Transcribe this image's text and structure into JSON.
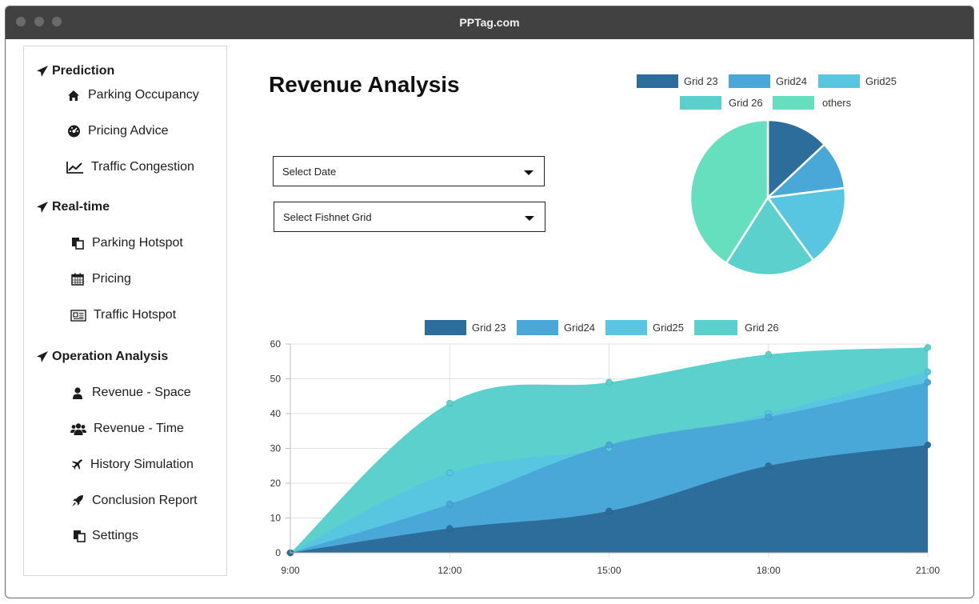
{
  "window": {
    "title": "PPTag.com"
  },
  "sidebar": {
    "sections": [
      {
        "label": "Prediction",
        "items": [
          {
            "label": "Parking Occupancy",
            "icon": "home-icon"
          },
          {
            "label": "Pricing Advice",
            "icon": "dashboard-icon"
          },
          {
            "label": "Traffic Congestion",
            "icon": "line-chart-icon"
          }
        ]
      },
      {
        "label": "Real-time",
        "items": [
          {
            "label": "Parking Hotspot",
            "icon": "copy-icon"
          },
          {
            "label": "Pricing",
            "icon": "calendar-icon"
          },
          {
            "label": "Traffic Hotspot",
            "icon": "newspaper-icon"
          }
        ]
      },
      {
        "label": "Operation Analysis",
        "items": [
          {
            "label": "Revenue - Space",
            "icon": "user-icon"
          },
          {
            "label": "Revenue - Time",
            "icon": "users-icon"
          },
          {
            "label": "History Simulation",
            "icon": "plane-icon"
          },
          {
            "label": "Conclusion Report",
            "icon": "rocket-icon"
          },
          {
            "label": "Settings",
            "icon": "copy-icon"
          }
        ]
      }
    ]
  },
  "main": {
    "title": "Revenue Analysis",
    "select_date": "Select Date",
    "select_grid": "Select Fishnet Grid"
  },
  "colors": {
    "grid23": "#2d6d9b",
    "grid24": "#4aa8d8",
    "grid25": "#58c6e0",
    "grid26": "#5cd0cc",
    "others": "#66dfbf"
  },
  "chart_data": [
    {
      "type": "pie",
      "title": "",
      "categories": [
        "Grid 23",
        "Grid24",
        "Grid25",
        "Grid 26",
        "others"
      ],
      "values": [
        13,
        10,
        17,
        19,
        41
      ],
      "legend": "top"
    },
    {
      "type": "area",
      "title": "",
      "stacked": false,
      "x": [
        "9:00",
        "12:00",
        "15:00",
        "18:00",
        "21:00"
      ],
      "series": [
        {
          "name": "Grid 23",
          "values": [
            0,
            7,
            12,
            25,
            31
          ]
        },
        {
          "name": "Grid24",
          "values": [
            0,
            14,
            31,
            39,
            49
          ]
        },
        {
          "name": "Grid25",
          "values": [
            0,
            23,
            30,
            40,
            52
          ]
        },
        {
          "name": "Grid 26",
          "values": [
            0,
            43,
            49,
            57,
            59
          ]
        }
      ],
      "yticks": [
        0,
        10,
        20,
        30,
        40,
        50,
        60
      ],
      "ylim": [
        0,
        60
      ],
      "grid": true,
      "legend": "top"
    }
  ]
}
